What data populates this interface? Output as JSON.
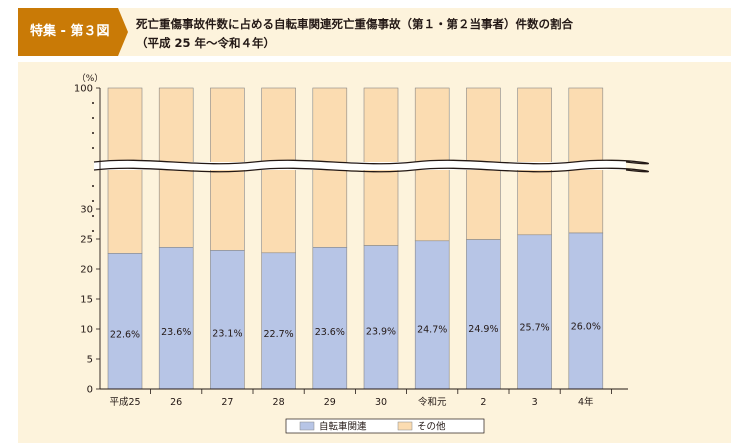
{
  "header": {
    "badge": "特集 - 第３図",
    "title_line1": "死亡重傷事故件数に占める自転車関連死亡重傷事故（第１・第２当事者）件数の割合",
    "title_line2": "（平成 25 年～令和４年）"
  },
  "colors": {
    "badge": "#c97a06",
    "panel": "#fdf3dc",
    "bicycle": "#b7c5e6",
    "other": "#fbdcb1",
    "outline": "#888888"
  },
  "chart_data": {
    "type": "bar",
    "stacked": true,
    "broken_axis": true,
    "unit": "（%）",
    "categories": [
      "平成25",
      "26",
      "27",
      "28",
      "29",
      "30",
      "令和元",
      "2",
      "3",
      "4年"
    ],
    "series": [
      {
        "name": "自転車関連",
        "values": [
          22.6,
          23.6,
          23.1,
          22.7,
          23.6,
          23.9,
          24.7,
          24.9,
          25.7,
          26.0
        ],
        "labels": [
          "22.6%",
          "23.6%",
          "23.1%",
          "22.7%",
          "23.6%",
          "23.9%",
          "24.7%",
          "24.9%",
          "25.7%",
          "26.0%"
        ]
      },
      {
        "name": "その他",
        "values": [
          77.4,
          76.4,
          76.9,
          77.3,
          76.4,
          76.1,
          75.3,
          75.1,
          74.3,
          74.0
        ]
      }
    ],
    "y_ticks": [
      0,
      5,
      10,
      15,
      20,
      25,
      30
    ],
    "y_top_tick": 100,
    "ylim": [
      0,
      100
    ],
    "grid": false,
    "legend_placement": "bottom-center"
  }
}
